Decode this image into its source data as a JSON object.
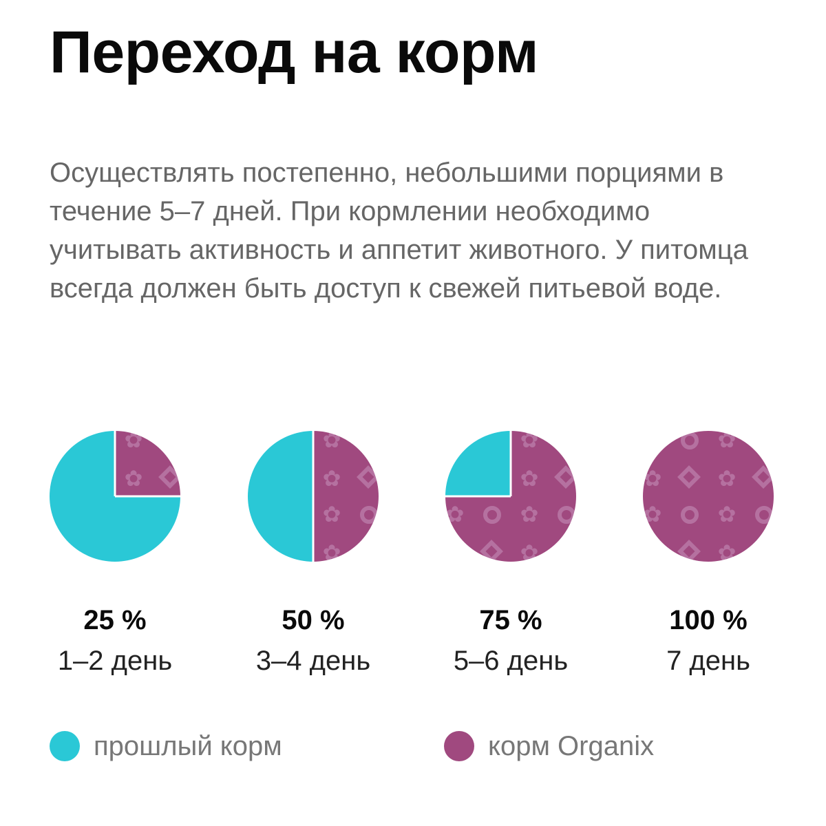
{
  "title": "Переход на корм",
  "description": "Осуществлять постепенно, небольшими порциями в течение 5–7 дней. При кормлении необходимо учитывать активность и аппетит животного. У питомца всегда должен быть доступ к свежей питьевой воде.",
  "colors": {
    "old_food": "#2ac8d6",
    "new_food": "#a0497f",
    "pattern": "#b571a0",
    "text_dark": "#0a0a0a",
    "text_gray": "#666666"
  },
  "legend": [
    {
      "label": "прошлый корм",
      "color": "#2ac8d6"
    },
    {
      "label": "корм Organix",
      "color": "#a0497f"
    }
  ],
  "chart_data": {
    "type": "pie",
    "title": "",
    "series": [
      {
        "name": "прошлый корм",
        "color": "#2ac8d6"
      },
      {
        "name": "корм Organix",
        "color": "#a0497f"
      }
    ],
    "charts": [
      {
        "percent_label": "25 %",
        "day_label": "1–2 день",
        "old_food": 75,
        "organix": 25
      },
      {
        "percent_label": "50 %",
        "day_label": "3–4 день",
        "old_food": 50,
        "organix": 50
      },
      {
        "percent_label": "75 %",
        "day_label": "5–6 день",
        "old_food": 25,
        "organix": 75
      },
      {
        "percent_label": "100 %",
        "day_label": "7 день",
        "old_food": 0,
        "organix": 100
      }
    ]
  }
}
